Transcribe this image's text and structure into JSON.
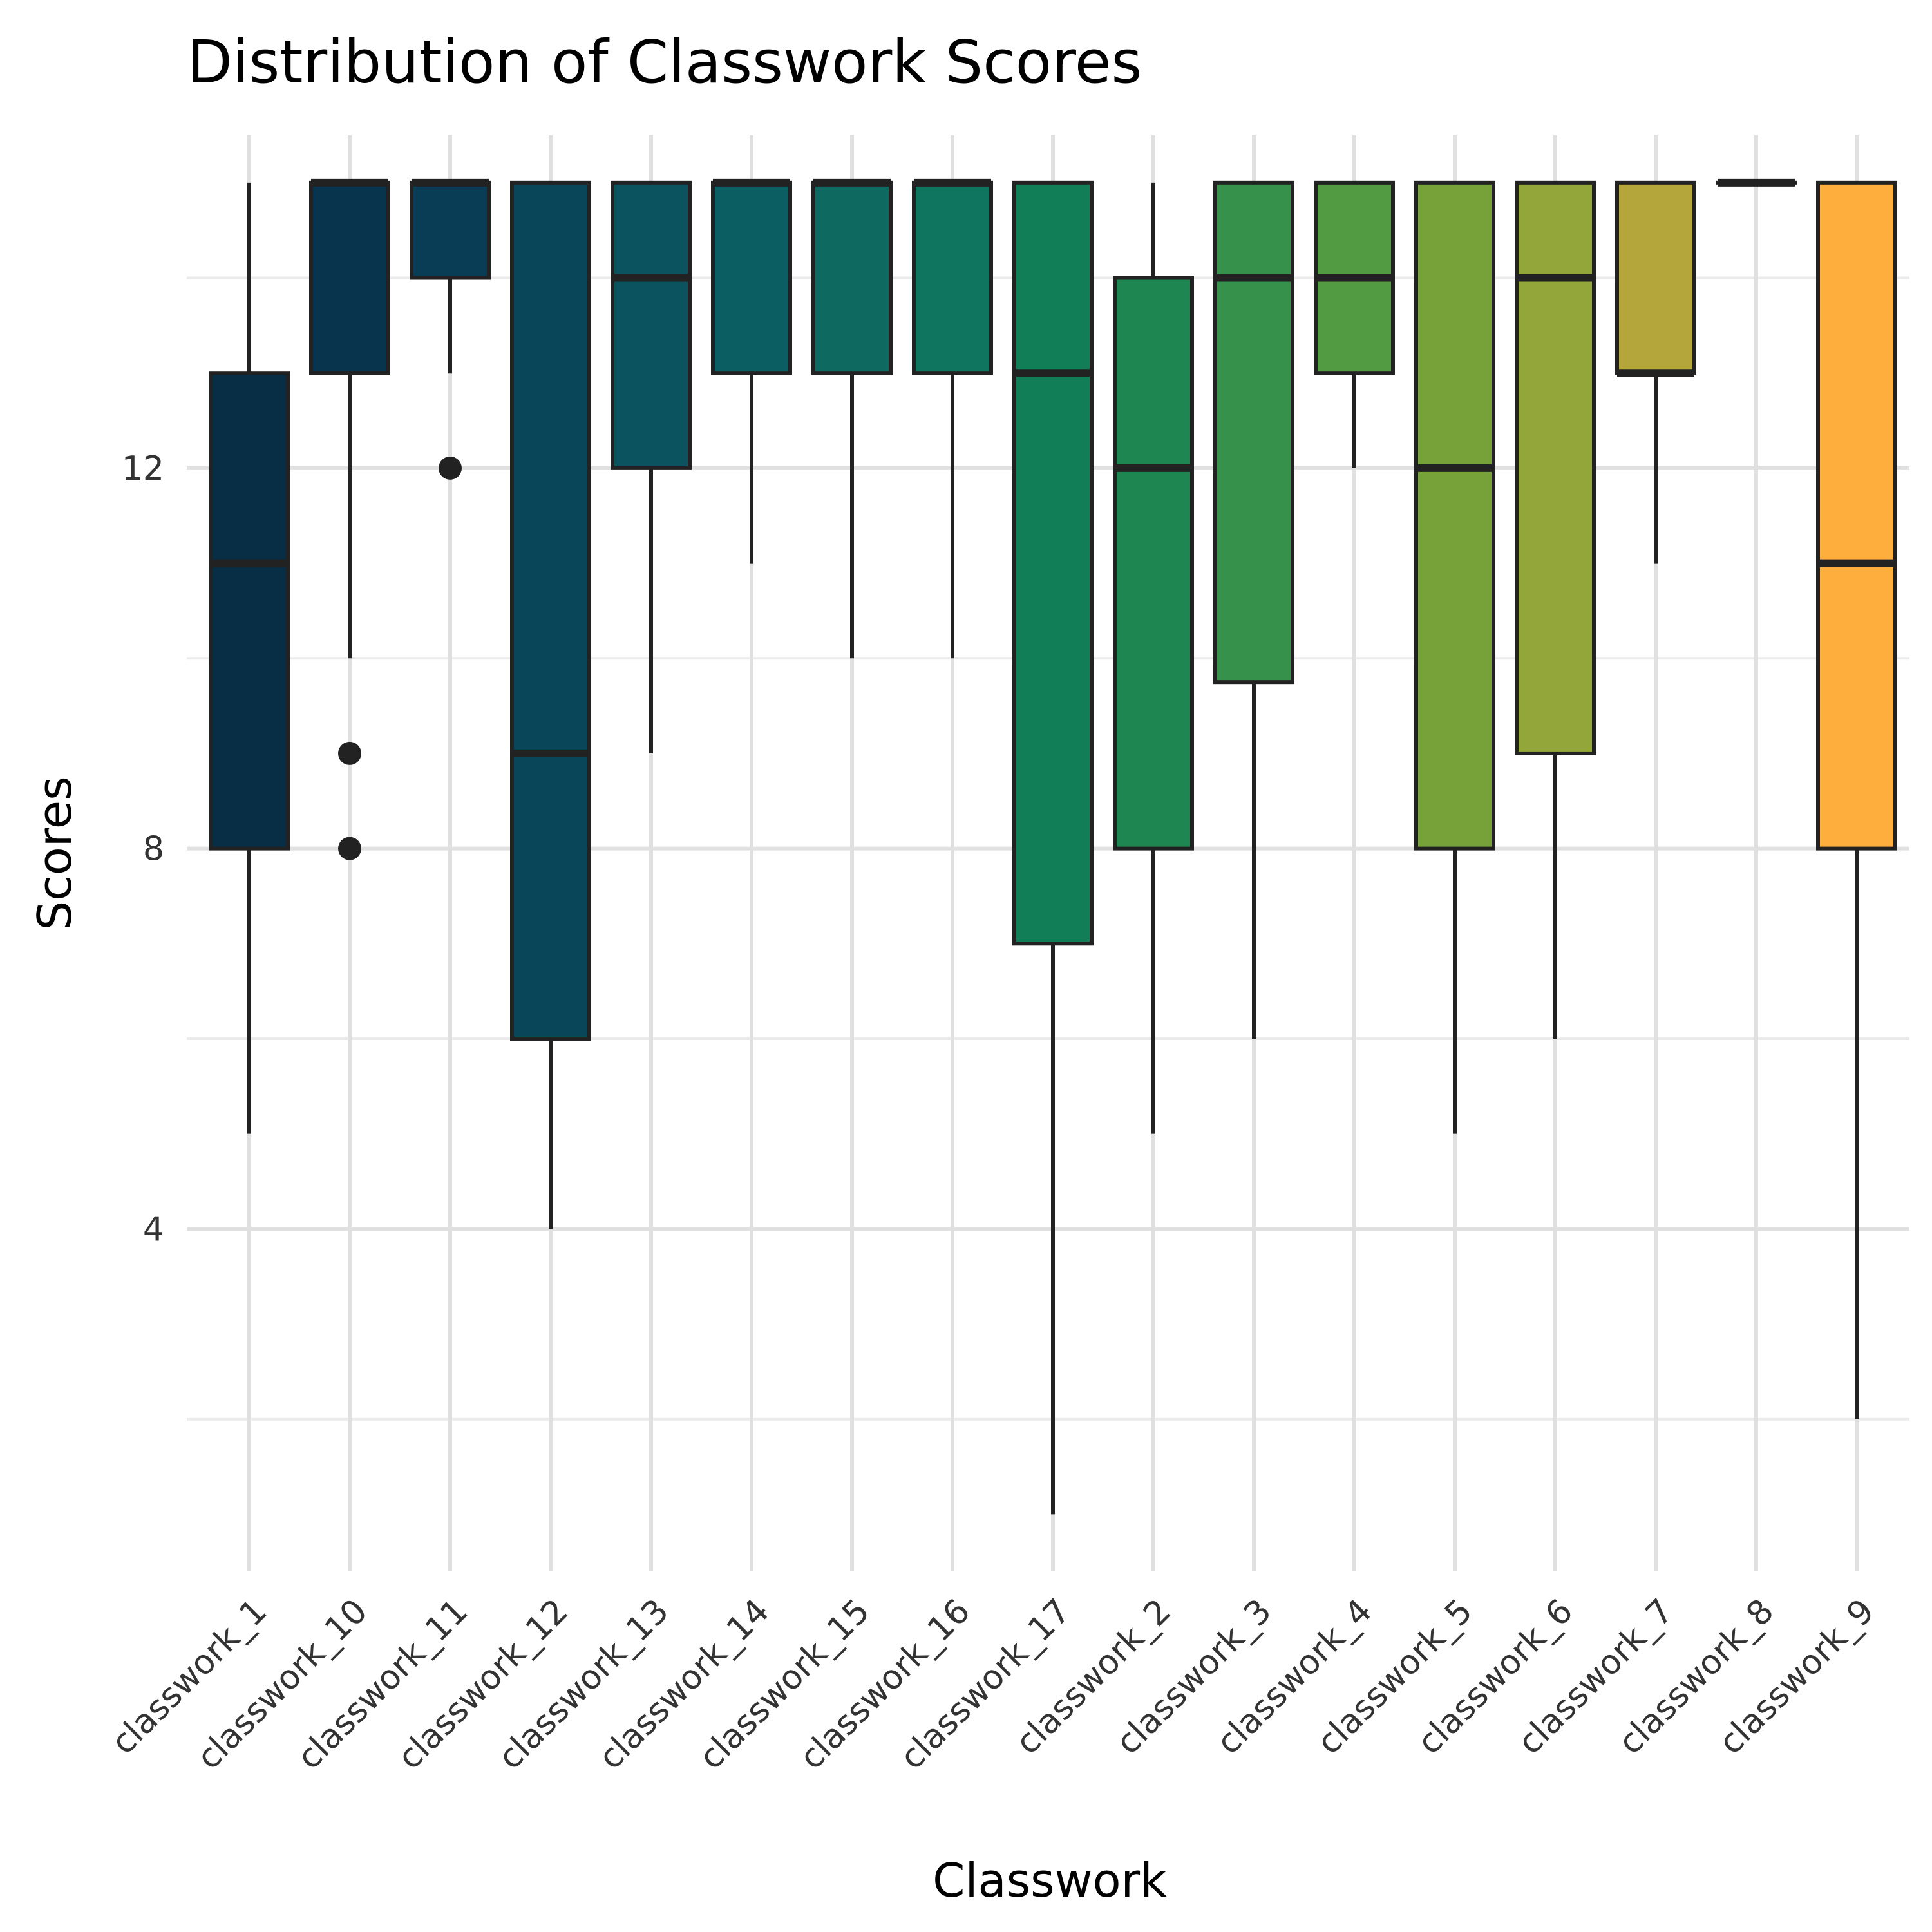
{
  "chart_data": {
    "type": "boxplot",
    "title": "Distribution of Classwork Scores",
    "xlabel": "Classwork",
    "ylabel": "Scores",
    "ylim": [
      0.4,
      15.5
    ],
    "yticks": [
      4,
      8,
      12
    ],
    "ytick_labels": [
      "4",
      "8",
      "12"
    ],
    "grid": true,
    "legend": "none",
    "categories": [
      "classwork_1",
      "classwork_10",
      "classwork_11",
      "classwork_12",
      "classwork_13",
      "classwork_14",
      "classwork_15",
      "classwork_16",
      "classwork_17",
      "classwork_2",
      "classwork_3",
      "classwork_4",
      "classwork_5",
      "classwork_6",
      "classwork_7",
      "classwork_8",
      "classwork_9"
    ],
    "boxes": [
      {
        "min": 5,
        "q1": 8,
        "median": 11,
        "q3": 13,
        "max": 15,
        "outliers": [],
        "color": "#072e45"
      },
      {
        "min": 10,
        "q1": 13,
        "median": 15,
        "q3": 15,
        "max": 15,
        "outliers": [
          9,
          8
        ],
        "color": "#08344e"
      },
      {
        "min": 13,
        "q1": 14,
        "median": 15,
        "q3": 15,
        "max": 15,
        "outliers": [
          12
        ],
        "color": "#093d55"
      },
      {
        "min": 4,
        "q1": 6,
        "median": 9,
        "q3": 15,
        "max": 15,
        "outliers": [],
        "color": "#0a465a"
      },
      {
        "min": 9,
        "q1": 12,
        "median": 14,
        "q3": 15,
        "max": 15,
        "outliers": [],
        "color": "#0a535f"
      },
      {
        "min": 11,
        "q1": 13,
        "median": 15,
        "q3": 15,
        "max": 15,
        "outliers": [],
        "color": "#0b5e62"
      },
      {
        "min": 10,
        "q1": 13,
        "median": 15,
        "q3": 15,
        "max": 15,
        "outliers": [],
        "color": "#0e6a61"
      },
      {
        "min": 10,
        "q1": 13,
        "median": 15,
        "q3": 15,
        "max": 15,
        "outliers": [],
        "color": "#10755e"
      },
      {
        "min": 1,
        "q1": 7,
        "median": 13,
        "q3": 15,
        "max": 15,
        "outliers": [],
        "color": "#117e58"
      },
      {
        "min": 5,
        "q1": 8,
        "median": 12,
        "q3": 14,
        "max": 15,
        "outliers": [],
        "color": "#1e8751"
      },
      {
        "min": 6,
        "q1": 9.75,
        "median": 14,
        "q3": 15,
        "max": 15,
        "outliers": [],
        "color": "#36924a"
      },
      {
        "min": 12,
        "q1": 13,
        "median": 14,
        "q3": 15,
        "max": 15,
        "outliers": [],
        "color": "#539b42"
      },
      {
        "min": 5,
        "q1": 8,
        "median": 12,
        "q3": 15,
        "max": 15,
        "outliers": [],
        "color": "#77a23a"
      },
      {
        "min": 6,
        "q1": 9,
        "median": 14,
        "q3": 15,
        "max": 15,
        "outliers": [],
        "color": "#93a63a"
      },
      {
        "min": 11,
        "q1": 13,
        "median": 13,
        "q3": 15,
        "max": 15,
        "outliers": [],
        "color": "#b4a63b"
      },
      {
        "min": 15,
        "q1": 15,
        "median": 15,
        "q3": 15,
        "max": 15,
        "outliers": [],
        "color": "#d6aa3c"
      },
      {
        "min": 2,
        "q1": 8,
        "median": 11,
        "q3": 15,
        "max": 15,
        "outliers": [],
        "color": "#feae3d"
      }
    ]
  }
}
